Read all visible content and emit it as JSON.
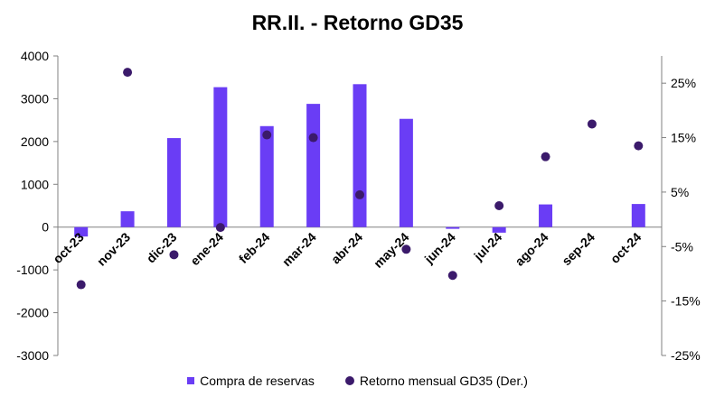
{
  "chart_data": {
    "type": "bar",
    "title": "RR.II. - Retorno GD35",
    "categories": [
      "oct-23",
      "nov-23",
      "dic-23",
      "ene-24",
      "feb-24",
      "mar-24",
      "abr-24",
      "may-24",
      "jun-24",
      "jul-24",
      "ago-24",
      "sep-24",
      "oct-24"
    ],
    "series": [
      {
        "name": "Compra de reservas",
        "type": "bar",
        "axis": "left",
        "color": "#6a3df5",
        "values": [
          -220,
          370,
          2080,
          3270,
          2360,
          2880,
          3340,
          2530,
          -40,
          -130,
          530,
          0,
          540
        ]
      },
      {
        "name": "Retorno mensual GD35 (Der.)",
        "type": "scatter",
        "axis": "right",
        "color": "#3b1a6b",
        "values": [
          -12,
          27,
          -6.5,
          -1.5,
          15.5,
          15,
          4.5,
          -5.5,
          -10.3,
          2.5,
          11.5,
          17.5,
          13.5
        ]
      }
    ],
    "ylim": [
      -3000,
      4000
    ],
    "yticks": [
      -3000,
      -2000,
      -1000,
      0,
      1000,
      2000,
      3000,
      4000
    ],
    "y2lim": [
      -25,
      30
    ],
    "y2ticks": [
      "-25%",
      "-15%",
      "-5%",
      "5%",
      "15%",
      "25%"
    ],
    "y2tick_values": [
      -25,
      -15,
      -5,
      5,
      15,
      25
    ],
    "legend_position": "bottom",
    "grid": false
  },
  "legend": {
    "bar_label": "Compra de reservas",
    "dot_label": "Retorno mensual GD35 (Der.)"
  }
}
